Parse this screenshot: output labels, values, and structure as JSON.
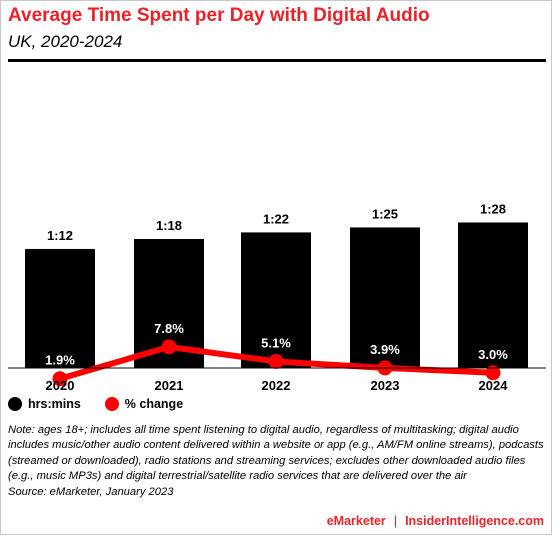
{
  "header": {
    "title": "Average Time Spent per Day with Digital Audio",
    "subtitle": "UK, 2020-2024"
  },
  "chart_data": {
    "type": "bar",
    "categories": [
      "2020",
      "2021",
      "2022",
      "2023",
      "2024"
    ],
    "series": [
      {
        "name": "hrs:mins",
        "type": "bar",
        "values": [
          72,
          78,
          82,
          85,
          88
        ],
        "labels": [
          "1:12",
          "1:18",
          "1:22",
          "1:25",
          "1:28"
        ],
        "color": "#000000"
      },
      {
        "name": "% change",
        "type": "line",
        "values": [
          1.9,
          7.8,
          5.1,
          3.9,
          3.0
        ],
        "labels": [
          "1.9%",
          "7.8%",
          "5.1%",
          "3.9%",
          "3.0%"
        ],
        "color": "#ff0000"
      }
    ],
    "ylim": [
      0,
      100
    ],
    "grid": false,
    "legend_position": "bottom-left"
  },
  "legend": {
    "bar_label": "hrs:mins",
    "line_label": "% change",
    "bar_color": "#000000",
    "line_color": "#ff0000"
  },
  "note": {
    "text": "Note: ages 18+; includes all time spent listening to digital audio, regardless of multitasking; digital audio includes music/other audio content delivered within a website or app (e.g., AM/FM online streams), podcasts (streamed or downloaded), radio stations and streaming services; excludes other downloaded audio files (e.g., music MP3s) and digital terrestrial/satellite radio services that are delivered over the air",
    "source": "Source: eMarketer, January 2023"
  },
  "footer": {
    "brand": "eMarketer",
    "separator": "|",
    "site": "InsiderIntelligence.com"
  }
}
